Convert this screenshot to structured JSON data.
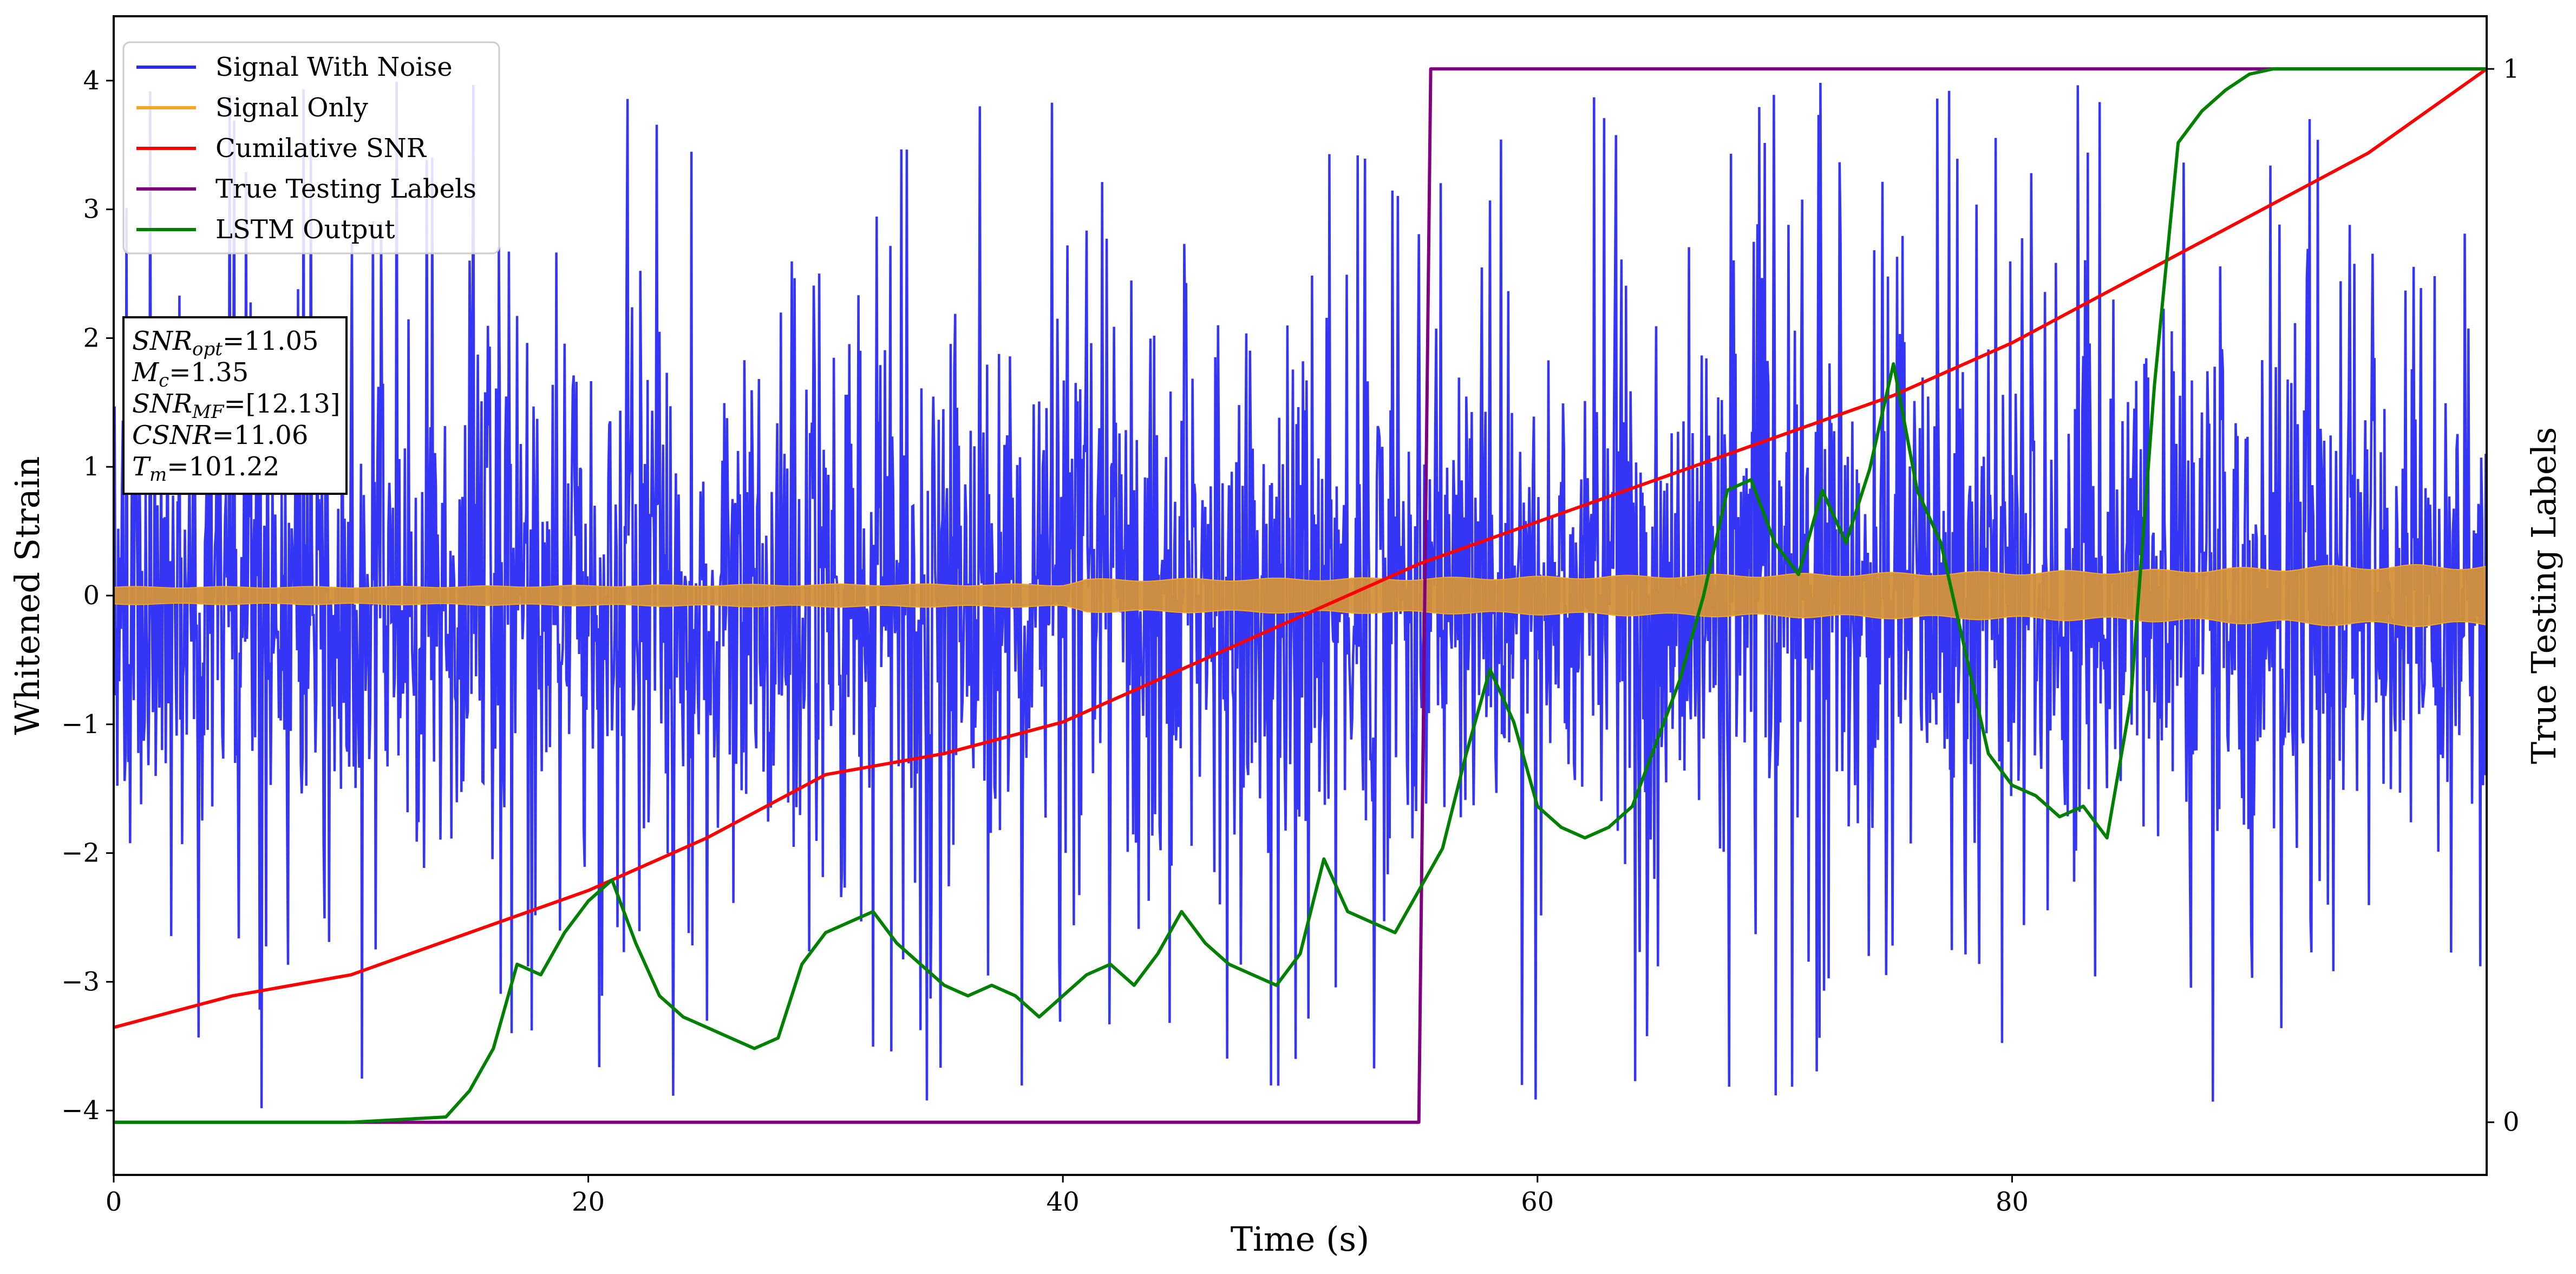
{
  "chart_data": {
    "type": "line",
    "xlabel": "Time (s)",
    "ylabel": "Whitened Strain",
    "y2label": "True Testing Labels",
    "xlim": [
      0,
      100
    ],
    "ylim": [
      -4.5,
      4.5
    ],
    "y2lim": [
      -0.05,
      1.05
    ],
    "xticks": [
      "0",
      "20",
      "40",
      "60",
      "80"
    ],
    "yticks": [
      "−4",
      "−3",
      "−2",
      "−1",
      "0",
      "1",
      "2",
      "3",
      "4"
    ],
    "y2ticks": [
      "0",
      "1"
    ],
    "grid": false,
    "legend_position": "top-left",
    "legend": [
      {
        "label": "Signal With Noise",
        "color": "#2a2af5"
      },
      {
        "label": "Signal Only",
        "color": "#f5a623"
      },
      {
        "label": "Cumilative SNR",
        "color": "#ff0000"
      },
      {
        "label": "True Testing Labels",
        "color": "#800080"
      },
      {
        "label": "LSTM Output",
        "color": "#008000"
      }
    ],
    "annotation": {
      "lines": [
        {
          "sym": "SNR",
          "sub": "opt",
          "value": "=11.05"
        },
        {
          "sym": "M",
          "sub": "c",
          "value": "=1.35"
        },
        {
          "sym": "SNR",
          "sub": "MF",
          "value": "=[12.13]"
        },
        {
          "sym": "CSNR",
          "sub": "",
          "value": "=11.06"
        },
        {
          "sym": "T",
          "sub": "m",
          "value": "=101.22"
        }
      ]
    },
    "series": [
      {
        "name": "Signal With Noise",
        "axis": "left",
        "color": "#2a2af5",
        "style": "dense-noise",
        "amplitude_envelope": [
          [
            0,
            1.6
          ],
          [
            20,
            1.6
          ],
          [
            40,
            1.6
          ],
          [
            60,
            1.6
          ],
          [
            80,
            1.6
          ],
          [
            100,
            1.6
          ]
        ],
        "max_abs_range": [
          -4.0,
          4.1
        ]
      },
      {
        "name": "Signal Only",
        "axis": "left",
        "color": "#f5a623",
        "style": "oscillating-band",
        "amplitude_envelope": [
          [
            0,
            0.07
          ],
          [
            10,
            0.07
          ],
          [
            20,
            0.08
          ],
          [
            30,
            0.09
          ],
          [
            40,
            0.09
          ],
          [
            41,
            0.13
          ],
          [
            55,
            0.14
          ],
          [
            65,
            0.16
          ],
          [
            75,
            0.18
          ],
          [
            85,
            0.2
          ],
          [
            95,
            0.24
          ],
          [
            100,
            0.24
          ]
        ]
      },
      {
        "name": "Cumilative SNR",
        "axis": "right",
        "color": "#ff0000",
        "x": [
          0,
          5,
          10,
          15,
          20,
          25,
          30,
          35,
          40,
          45,
          50,
          55,
          60,
          65,
          70,
          75,
          80,
          85,
          90,
          95,
          100
        ],
        "y": [
          0.09,
          0.12,
          0.14,
          0.18,
          0.22,
          0.27,
          0.33,
          0.35,
          0.38,
          0.43,
          0.48,
          0.53,
          0.57,
          0.61,
          0.65,
          0.69,
          0.74,
          0.8,
          0.86,
          0.92,
          1.0
        ]
      },
      {
        "name": "True Testing Labels",
        "axis": "right",
        "color": "#800080",
        "x": [
          0,
          55,
          55.5,
          100
        ],
        "y": [
          0,
          0,
          1,
          1
        ]
      },
      {
        "name": "LSTM Output",
        "axis": "right",
        "color": "#008000",
        "x": [
          0,
          10,
          14,
          15,
          16,
          17,
          18,
          19,
          20,
          21,
          22,
          23,
          24,
          25,
          26,
          27,
          28,
          29,
          30,
          31,
          32,
          33,
          34,
          35,
          36,
          37,
          38,
          39,
          40,
          41,
          42,
          43,
          44,
          45,
          46,
          47,
          48,
          49,
          50,
          51,
          52,
          53,
          54,
          55,
          56,
          57,
          58,
          59,
          60,
          61,
          62,
          63,
          64,
          65,
          66,
          67,
          68,
          69,
          70,
          71,
          72,
          73,
          74,
          75,
          76,
          77,
          78,
          79,
          80,
          81,
          82,
          83,
          84,
          85,
          86,
          87,
          88,
          89,
          90,
          91,
          95,
          100
        ],
        "y": [
          0,
          0,
          0.005,
          0.03,
          0.07,
          0.15,
          0.14,
          0.18,
          0.21,
          0.23,
          0.17,
          0.12,
          0.1,
          0.09,
          0.08,
          0.07,
          0.08,
          0.15,
          0.18,
          0.19,
          0.2,
          0.17,
          0.15,
          0.13,
          0.12,
          0.13,
          0.12,
          0.1,
          0.12,
          0.14,
          0.15,
          0.13,
          0.16,
          0.2,
          0.17,
          0.15,
          0.14,
          0.13,
          0.16,
          0.25,
          0.2,
          0.19,
          0.18,
          0.22,
          0.26,
          0.35,
          0.43,
          0.38,
          0.3,
          0.28,
          0.27,
          0.28,
          0.3,
          0.36,
          0.42,
          0.5,
          0.6,
          0.61,
          0.55,
          0.52,
          0.6,
          0.55,
          0.62,
          0.72,
          0.6,
          0.55,
          0.45,
          0.35,
          0.32,
          0.31,
          0.29,
          0.3,
          0.27,
          0.4,
          0.7,
          0.93,
          0.96,
          0.98,
          0.995,
          1.0,
          1.0,
          1.0
        ]
      }
    ]
  }
}
